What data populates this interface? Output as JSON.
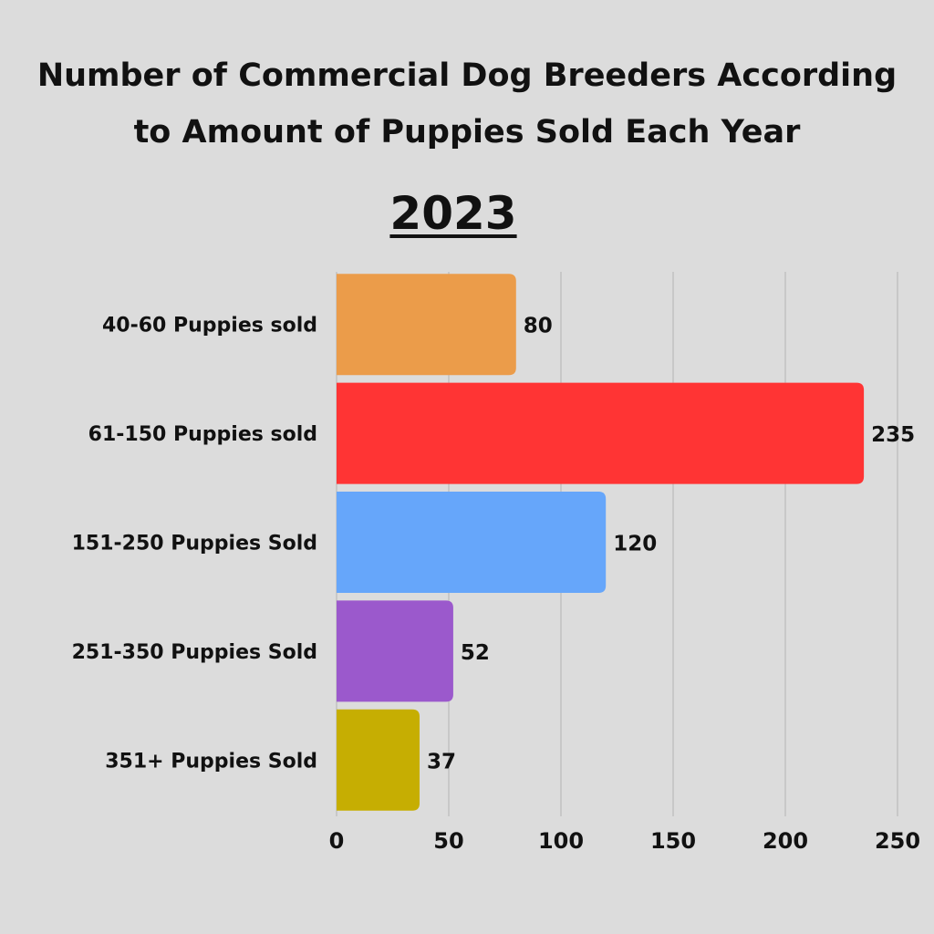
{
  "chart_data": {
    "type": "bar",
    "orientation": "horizontal",
    "title": "Number of Commercial Dog Breeders According to Amount of Puppies Sold Each Year",
    "title_lines": [
      "Number of Commercial Dog Breeders According",
      "to Amount of Puppies Sold Each Year"
    ],
    "subtitle": "2023",
    "categories": [
      "40-60 Puppies sold",
      "61-150 Puppies sold",
      "151-250 Puppies Sold",
      "251-350 Puppies Sold",
      "351+ Puppies Sold"
    ],
    "values": [
      80,
      235,
      120,
      52,
      37
    ],
    "colors": [
      "#eb9c4a",
      "#ff3434",
      "#66a6fa",
      "#9b59cc",
      "#c6ae02"
    ],
    "xlim": [
      0,
      250
    ],
    "xticks": [
      0,
      50,
      100,
      150,
      200,
      250
    ],
    "grid": true,
    "xlabel": "",
    "ylabel": ""
  }
}
